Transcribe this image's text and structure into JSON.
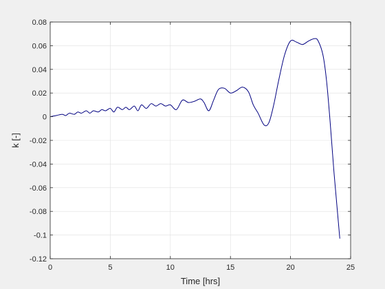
{
  "chart_data": {
    "type": "line",
    "xlabel": "Time [hrs]",
    "ylabel": "k [-]",
    "xlim": [
      0,
      25
    ],
    "ylim": [
      -0.12,
      0.08
    ],
    "xticks": [
      0,
      5,
      10,
      15,
      20,
      25
    ],
    "yticks": [
      -0.12,
      -0.1,
      -0.08,
      -0.06,
      -0.04,
      -0.02,
      0,
      0.02,
      0.04,
      0.06,
      0.08
    ],
    "xtick_labels": [
      "0",
      "5",
      "10",
      "15",
      "20",
      "25"
    ],
    "ytick_labels": [
      "-0.12",
      "-0.1",
      "-0.08",
      "-0.06",
      "-0.04",
      "-0.02",
      "0",
      "0.02",
      "0.04",
      "0.06",
      "0.08"
    ],
    "grid": true,
    "series": [
      {
        "color": "#000080",
        "x": [
          0,
          0.5,
          1.0,
          1.3,
          1.6,
          2.0,
          2.3,
          2.6,
          3.0,
          3.3,
          3.6,
          4.0,
          4.3,
          4.6,
          5.0,
          5.3,
          5.6,
          6.0,
          6.3,
          6.6,
          7.0,
          7.3,
          7.6,
          8.0,
          8.4,
          8.8,
          9.2,
          9.6,
          10.0,
          10.5,
          11.0,
          11.5,
          12.0,
          12.5,
          12.8,
          13.2,
          13.6,
          14.0,
          14.5,
          15.0,
          15.5,
          16.0,
          16.5,
          16.9,
          17.3,
          17.8,
          18.2,
          18.6,
          19.0,
          19.5,
          20.0,
          20.5,
          21.0,
          21.5,
          22.0,
          22.3,
          22.7,
          23.0,
          23.3,
          23.6,
          23.9,
          24.1
        ],
        "y": [
          0.0,
          0.001,
          0.002,
          0.001,
          0.003,
          0.002,
          0.004,
          0.003,
          0.005,
          0.003,
          0.005,
          0.004,
          0.006,
          0.005,
          0.007,
          0.004,
          0.008,
          0.006,
          0.008,
          0.006,
          0.009,
          0.005,
          0.01,
          0.007,
          0.011,
          0.009,
          0.011,
          0.009,
          0.01,
          0.006,
          0.014,
          0.012,
          0.013,
          0.015,
          0.012,
          0.005,
          0.014,
          0.023,
          0.024,
          0.02,
          0.022,
          0.025,
          0.021,
          0.01,
          0.003,
          -0.007,
          -0.005,
          0.01,
          0.03,
          0.052,
          0.064,
          0.063,
          0.061,
          0.064,
          0.066,
          0.064,
          0.052,
          0.03,
          -0.005,
          -0.045,
          -0.08,
          -0.103
        ]
      }
    ]
  }
}
